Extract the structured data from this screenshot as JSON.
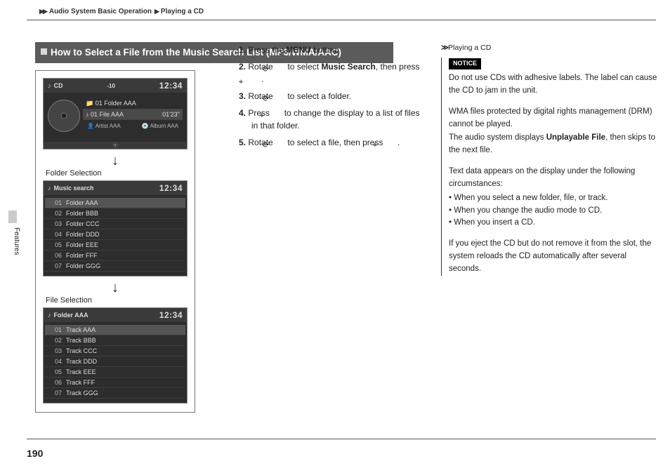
{
  "breadcrumb": {
    "a": "Audio System Basic Operation",
    "b": "Playing a CD"
  },
  "pageNumber": "190",
  "sideTab": "Features",
  "heading": "How to Select a File from the Music Search List (MP3/WMA/AAC)",
  "screenClock": "12:34",
  "cdScreen": {
    "title": "CD",
    "signal": "-10",
    "folderLine": "01  Folder AAA",
    "fileLine": "01 File AAA",
    "time": "01'23\"",
    "artist": "Artist AAA",
    "album": "Album AAA"
  },
  "label_folderSel": "Folder Selection",
  "label_fileSel": "File Selection",
  "folderScreen": {
    "title": "Music search",
    "items": [
      {
        "n": "01",
        "t": "Folder AAA"
      },
      {
        "n": "02",
        "t": "Folder BBB"
      },
      {
        "n": "03",
        "t": "Folder CCC"
      },
      {
        "n": "04",
        "t": "Folder DDD"
      },
      {
        "n": "05",
        "t": "Folder EEE"
      },
      {
        "n": "06",
        "t": "Folder FFF"
      },
      {
        "n": "07",
        "t": "Folder GGG"
      }
    ]
  },
  "fileScreen": {
    "title": "Folder AAA",
    "items": [
      {
        "n": "01",
        "t": "Track AAA"
      },
      {
        "n": "02",
        "t": "Track BBB"
      },
      {
        "n": "03",
        "t": "Track CCC"
      },
      {
        "n": "04",
        "t": "Track DDD"
      },
      {
        "n": "05",
        "t": "Track EEE"
      },
      {
        "n": "06",
        "t": "Track FFF"
      },
      {
        "n": "07",
        "t": "Track GGG"
      }
    ]
  },
  "steps": {
    "s1a": "Press the ",
    "s1b": "MENU",
    "s1c": " button.",
    "s2a": "Rotate ",
    "s2b": " to select ",
    "s2c": "Music Search",
    "s2d": ", then press ",
    "s2e": ".",
    "s3a": "Rotate ",
    "s3b": " to select a folder.",
    "s4a": "Press ",
    "s4b": " to change the display to a list of files in that folder.",
    "s5a": "Rotate ",
    "s5b": " to select a file, then press ",
    "s5c": "."
  },
  "side": {
    "head": "Playing a CD",
    "noticeLabel": "NOTICE",
    "notice": "Do not use CDs with adhesive labels. The label can cause the CD to jam in the unit.",
    "drm1": "WMA files protected by digital rights management (DRM) cannot be played.",
    "drm2a": "The audio system displays ",
    "drm2b": "Unplayable File",
    "drm2c": ", then skips to the next file.",
    "textIntro": "Text data appears on the display under the following circumstances:",
    "b1": "When you select a new folder, file, or track.",
    "b2": "When you change the audio mode to CD.",
    "b3": "When you insert a CD.",
    "eject": "If you eject the CD but do not remove it from the slot, the system reloads the CD automatically after several seconds."
  }
}
